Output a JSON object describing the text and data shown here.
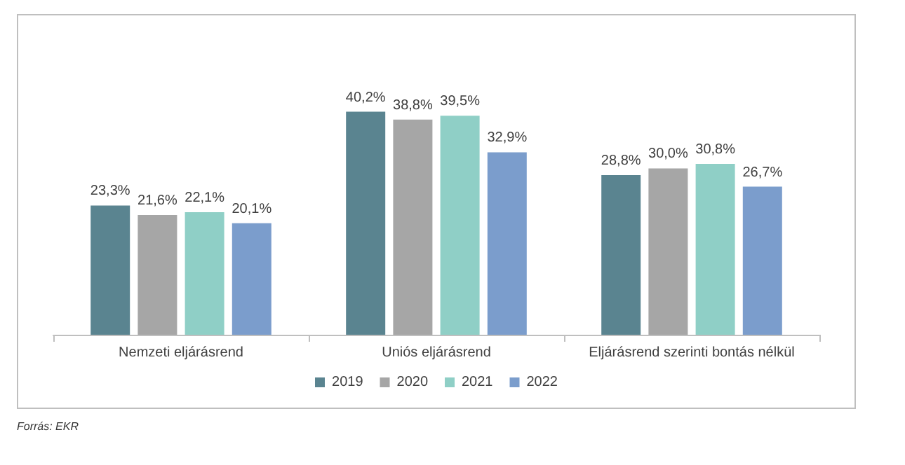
{
  "chart_data": {
    "type": "bar",
    "categories": [
      "Nemzeti eljárásrend",
      "Uniós eljárásrend",
      "Eljárásrend szerinti bontás nélkül"
    ],
    "series": [
      {
        "name": "2019",
        "color": "#5a8490",
        "values": [
          23.3,
          40.2,
          28.8
        ],
        "value_labels": [
          "23,3%",
          "40,2%",
          "28,8%"
        ]
      },
      {
        "name": "2020",
        "color": "#a6a6a6",
        "values": [
          21.6,
          38.8,
          30.0
        ],
        "value_labels": [
          "21,6%",
          "38,8%",
          "30,0%"
        ]
      },
      {
        "name": "2021",
        "color": "#8fcfc6",
        "values": [
          22.1,
          39.5,
          30.8
        ],
        "value_labels": [
          "22,1%",
          "39,5%",
          "30,8%"
        ]
      },
      {
        "name": "2022",
        "color": "#7b9dcc",
        "values": [
          20.1,
          32.9,
          26.7
        ],
        "value_labels": [
          "20,1%",
          "32,9%",
          "26,7%"
        ]
      }
    ],
    "legend": "bottom",
    "grid": false,
    "annotations": [
      "Forrás: EKR"
    ]
  }
}
